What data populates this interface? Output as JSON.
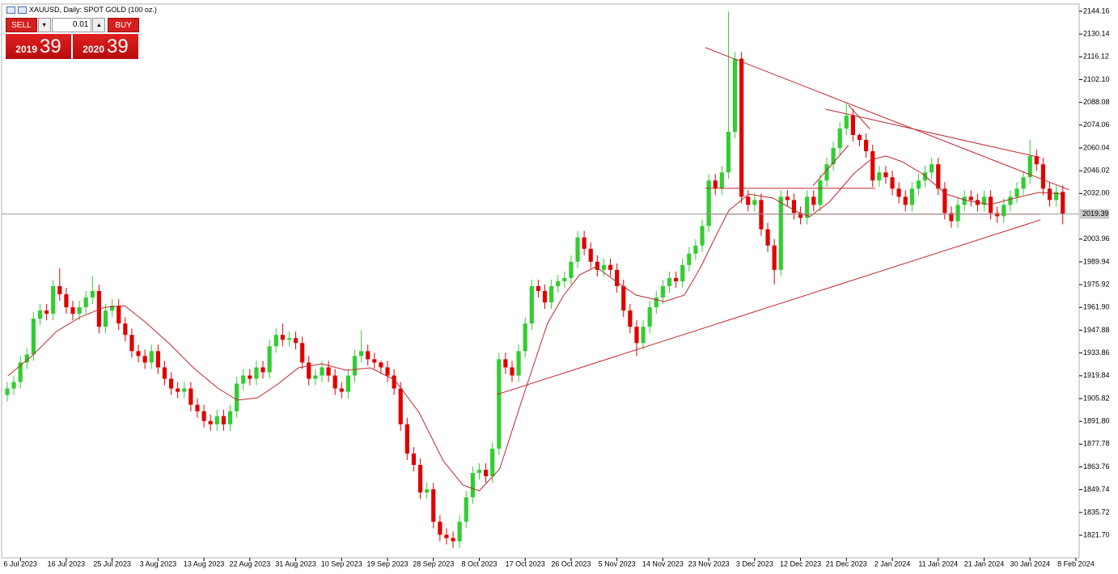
{
  "chart_data": {
    "type": "candlestick",
    "title": "XAUUSD, Daily:  SPOT GOLD (100 oz.)",
    "bull_color": "#32cd32",
    "bear_color": "#e00000",
    "line_color": "#c0272d",
    "last_price": 2019.39,
    "xlim": [
      -0.86,
      163.5
    ],
    "ylim": [
      1807.8,
      2148.6
    ],
    "yticks": [
      2144.16,
      2130.14,
      2116.12,
      {
        "value": 2102.1,
        "label": "2102.10"
      },
      2088.08,
      2074.06,
      2060.04,
      2046.02,
      {
        "value": 2032,
        "label": "2032.00"
      },
      2003.96,
      1989.94,
      1975.92,
      {
        "value": 1961.9,
        "label": "1961.90"
      },
      1947.88,
      1933.86,
      1919.84,
      1905.82,
      {
        "value": 1891.8,
        "label": "1891.80"
      },
      1877.78,
      1863.76,
      1849.74,
      1835.72,
      {
        "value": 1821.7,
        "label": "1821.70"
      }
    ],
    "xticks": [
      {
        "value": 2,
        "label": "6 Jul 2023"
      },
      {
        "value": 9,
        "label": "16 Jul 2023"
      },
      {
        "value": 16,
        "label": "25 Jul 2023"
      },
      {
        "value": 23,
        "label": "3 Aug 2023"
      },
      {
        "value": 30,
        "label": "13 Aug 2023"
      },
      {
        "value": 37,
        "label": "22 Aug 2023"
      },
      {
        "value": 44,
        "label": "31 Aug 2023"
      },
      {
        "value": 51,
        "label": "10 Sep 2023"
      },
      {
        "value": 58,
        "label": "19 Sep 2023"
      },
      {
        "value": 65,
        "label": "28 Sep 2023"
      },
      {
        "value": 72,
        "label": "8 Oct 2023"
      },
      {
        "value": 79,
        "label": "17 Oct 2023"
      },
      {
        "value": 86,
        "label": "26 Oct 2023"
      },
      {
        "value": 93,
        "label": "5 Nov 2023"
      },
      {
        "value": 100,
        "label": "14 Nov 2023"
      },
      {
        "value": 107,
        "label": "23 Nov 2023"
      },
      {
        "value": 114,
        "label": "3 Dec 2023"
      },
      {
        "value": 121,
        "label": "12 Dec 2023"
      },
      {
        "value": 128,
        "label": "21 Dec 2023"
      },
      {
        "value": 135,
        "label": "2 Jan 2024"
      },
      {
        "value": 142,
        "label": "11 Jan 2024"
      },
      {
        "value": 149,
        "label": "21 Jan 2024"
      },
      {
        "value": 156,
        "label": "30 Jan 2024"
      },
      {
        "value": 163,
        "label": "8 Feb 2024"
      }
    ],
    "open": [
      1908,
      1912,
      1916,
      1928,
      1933,
      1955,
      1960,
      1958,
      1975,
      1970,
      1962,
      1958,
      1962,
      1968,
      1972,
      1950,
      1960,
      1963,
      1952,
      1945,
      1935,
      1932,
      1928,
      1935,
      1925,
      1918,
      1912,
      1910,
      1912,
      1902,
      1898,
      1892,
      1890,
      1895,
      1890,
      1898,
      1915,
      1920,
      1918,
      1925,
      1922,
      1938,
      1945,
      1942,
      1943,
      1940,
      1928,
      1918,
      1920,
      1925,
      1920,
      1912,
      1910,
      1920,
      1932,
      1935,
      1930,
      1928,
      1925,
      1920,
      1912,
      1890,
      1872,
      1865,
      1848,
      1850,
      1830,
      1822,
      1820,
      1818,
      1830,
      1845,
      1860,
      1862,
      1858,
      1875,
      1930,
      1925,
      1920,
      1935,
      1952,
      1975,
      1972,
      1965,
      1975,
      1978,
      1980,
      1990,
      2005,
      1998,
      1990,
      1985,
      1988,
      1985,
      1975,
      1960,
      1950,
      1940,
      1950,
      1962,
      1968,
      1975,
      1980,
      1978,
      1988,
      1995,
      2000,
      2012,
      2040,
      2035,
      2045,
      2070,
      2115,
      2030,
      2025,
      2028,
      2010,
      2000,
      1985,
      2030,
      2028,
      2020,
      2017,
      2030,
      2025,
      2040,
      2050,
      2060,
      2072,
      2080,
      2068,
      2065,
      2058,
      2040,
      2045,
      2042,
      2035,
      2030,
      2025,
      2035,
      2040,
      2045,
      2050,
      2035,
      2020,
      2015,
      2025,
      2030,
      2028,
      2025,
      2030,
      2020,
      2018,
      2025,
      2030,
      2035,
      2042,
      2055,
      2050,
      2035,
      2028,
      2033
    ],
    "high": [
      1916,
      1920,
      1932,
      1937,
      1959,
      1964,
      1964,
      1979,
      1986,
      1974,
      1966,
      1966,
      1972,
      1981,
      1976,
      1964,
      1967,
      1967,
      1956,
      1949,
      1939,
      1936,
      1939,
      1939,
      1929,
      1922,
      1916,
      1916,
      1916,
      1906,
      1902,
      1896,
      1899,
      1899,
      1902,
      1919,
      1924,
      1924,
      1929,
      1929,
      1942,
      1949,
      1952,
      1947,
      1947,
      1944,
      1932,
      1924,
      1929,
      1929,
      1924,
      1916,
      1924,
      1936,
      1948,
      1939,
      1934,
      1929,
      1929,
      1924,
      1916,
      1894,
      1876,
      1869,
      1854,
      1854,
      1834,
      1826,
      1824,
      1834,
      1849,
      1864,
      1866,
      1866,
      1879,
      1934,
      1934,
      1929,
      1939,
      1956,
      1979,
      1979,
      1976,
      1979,
      1982,
      1984,
      1994,
      2009,
      2009,
      2002,
      1994,
      1992,
      1992,
      1989,
      1979,
      1964,
      1954,
      1954,
      1966,
      1972,
      1979,
      1984,
      1984,
      1992,
      1999,
      2004,
      2016,
      2044,
      2044,
      2049,
      2144,
      2119,
      2119,
      2034,
      2032,
      2032,
      2014,
      2004,
      2034,
      2034,
      2032,
      2024,
      2034,
      2034,
      2044,
      2054,
      2064,
      2076,
      2088,
      2084,
      2069,
      2069,
      2062,
      2049,
      2049,
      2046,
      2039,
      2034,
      2039,
      2044,
      2049,
      2054,
      2054,
      2039,
      2024,
      2029,
      2034,
      2034,
      2032,
      2034,
      2034,
      2024,
      2029,
      2034,
      2039,
      2046,
      2065,
      2059,
      2054,
      2039,
      2037,
      2037
    ],
    "low": [
      1904,
      1908,
      1912,
      1924,
      1929,
      1951,
      1954,
      1954,
      1966,
      1958,
      1954,
      1954,
      1958,
      1964,
      1946,
      1946,
      1956,
      1948,
      1941,
      1931,
      1928,
      1924,
      1924,
      1921,
      1914,
      1908,
      1906,
      1906,
      1898,
      1894,
      1888,
      1886,
      1886,
      1886,
      1886,
      1894,
      1911,
      1914,
      1914,
      1918,
      1918,
      1934,
      1938,
      1938,
      1936,
      1924,
      1914,
      1914,
      1916,
      1916,
      1908,
      1906,
      1906,
      1916,
      1928,
      1926,
      1924,
      1921,
      1916,
      1908,
      1886,
      1868,
      1861,
      1844,
      1844,
      1826,
      1818,
      1816,
      1814,
      1814,
      1826,
      1841,
      1856,
      1854,
      1854,
      1871,
      1921,
      1916,
      1916,
      1931,
      1948,
      1968,
      1961,
      1961,
      1971,
      1974,
      1976,
      1986,
      1994,
      1986,
      1981,
      1981,
      1981,
      1971,
      1956,
      1946,
      1932,
      1936,
      1946,
      1958,
      1964,
      1971,
      1974,
      1974,
      1984,
      1991,
      1996,
      2008,
      2031,
      2031,
      2041,
      2066,
      2026,
      2021,
      2021,
      2006,
      1996,
      1976,
      1981,
      2024,
      2016,
      2013,
      2013,
      2021,
      2021,
      2036,
      2046,
      2056,
      2068,
      2064,
      2061,
      2054,
      2036,
      2036,
      2038,
      2031,
      2026,
      2021,
      2021,
      2031,
      2036,
      2041,
      2031,
      2016,
      2011,
      2011,
      2021,
      2024,
      2021,
      2021,
      2016,
      2014,
      2014,
      2021,
      2026,
      2031,
      2038,
      2046,
      2031,
      2024,
      2024,
      2013
    ],
    "close": [
      1912,
      1916,
      1928,
      1933,
      1955,
      1960,
      1958,
      1975,
      1970,
      1962,
      1958,
      1962,
      1968,
      1972,
      1950,
      1960,
      1963,
      1952,
      1945,
      1935,
      1932,
      1928,
      1935,
      1925,
      1918,
      1912,
      1910,
      1912,
      1902,
      1898,
      1892,
      1890,
      1895,
      1890,
      1898,
      1915,
      1920,
      1918,
      1925,
      1922,
      1938,
      1945,
      1942,
      1943,
      1940,
      1928,
      1918,
      1920,
      1925,
      1920,
      1912,
      1910,
      1920,
      1932,
      1935,
      1930,
      1928,
      1925,
      1920,
      1912,
      1890,
      1872,
      1865,
      1848,
      1850,
      1830,
      1822,
      1820,
      1818,
      1830,
      1845,
      1860,
      1862,
      1858,
      1875,
      1930,
      1925,
      1920,
      1935,
      1952,
      1975,
      1972,
      1965,
      1975,
      1978,
      1980,
      1990,
      2005,
      1998,
      1990,
      1985,
      1988,
      1985,
      1975,
      1960,
      1950,
      1940,
      1950,
      1962,
      1968,
      1975,
      1980,
      1978,
      1988,
      1995,
      2000,
      2012,
      2040,
      2035,
      2045,
      2070,
      2115,
      2030,
      2025,
      2028,
      2010,
      2000,
      1985,
      2030,
      2028,
      2020,
      2017,
      2030,
      2025,
      2040,
      2050,
      2060,
      2072,
      2080,
      2068,
      2065,
      2058,
      2040,
      2045,
      2042,
      2035,
      2030,
      2025,
      2035,
      2040,
      2045,
      2050,
      2035,
      2020,
      2015,
      2025,
      2030,
      2028,
      2025,
      2030,
      2020,
      2018,
      2025,
      2030,
      2035,
      2042,
      2055,
      2050,
      2035,
      2028,
      2033,
      2019.39
    ],
    "moving_average": {
      "x": [
        0.1,
        3.8,
        7.5,
        11.2,
        14.9,
        17.9,
        21,
        24.7,
        28.4,
        32.1,
        35.1,
        38.2,
        41.3,
        44.4,
        48,
        51.7,
        55.4,
        59.1,
        62.8,
        66.5,
        69.5,
        72,
        75.1,
        78.7,
        82.4,
        84.9,
        87.3,
        89.8,
        92.3,
        95.9,
        100.2,
        103.3,
        105.8,
        108.2,
        110.1,
        113.1,
        116.8,
        120.5,
        122.4,
        125.4,
        129.1,
        131.6,
        134,
        136.5,
        139.6,
        143.2,
        146.3,
        150,
        153.7,
        157.4,
        161.1
      ],
      "values": [
        1919.8,
        1932.2,
        1947.1,
        1956.1,
        1962,
        1963,
        1953.1,
        1939.7,
        1924.7,
        1912.3,
        1904.8,
        1906.3,
        1914.8,
        1924.7,
        1927.2,
        1923.2,
        1924.7,
        1917.3,
        1897.4,
        1867.5,
        1852.6,
        1849.1,
        1862.5,
        1907.3,
        1952.1,
        1969.5,
        1982,
        1986.9,
        1979.5,
        1969.5,
        1965.5,
        1969.5,
        1986.9,
        2006.8,
        2021.7,
        2031.7,
        2029.2,
        2020.7,
        2017.8,
        2026.7,
        2044.1,
        2052.6,
        2055.1,
        2051.6,
        2044.1,
        2031.7,
        2027.7,
        2025.2,
        2029.2,
        2032.7,
        2031.7
      ]
    },
    "trendlines": [
      {
        "x": [
          106.5,
          162
        ],
        "y": [
          2121.8,
          2034.2
        ]
      },
      {
        "x": [
          124.8,
          157.6
        ],
        "y": [
          2083.9,
          2054.1
        ]
      },
      {
        "x": [
          74.7,
          157.6
        ],
        "y": [
          1908.3,
          2015.8
        ]
      },
      {
        "x": [
          106.5,
          132.4
        ],
        "y": [
          2035.2,
          2035.2
        ]
      },
      {
        "x": [
          106.5,
          157.6
        ],
        "y": [
          2019.3,
          2019.3
        ]
      },
      {
        "x": [
          122.9,
          128.3
        ],
        "y": [
          2036.7,
          2061.6
        ]
      },
      {
        "x": [
          128.3,
          131.6
        ],
        "y": [
          2086.5,
          2071.6
        ]
      }
    ]
  },
  "trade_panel": {
    "sell": "SELL",
    "lot": "0.01",
    "buy": "BUY",
    "bid_big": "2019",
    "bid_small": "39",
    "ask_big": "2020",
    "ask_small": "39"
  }
}
